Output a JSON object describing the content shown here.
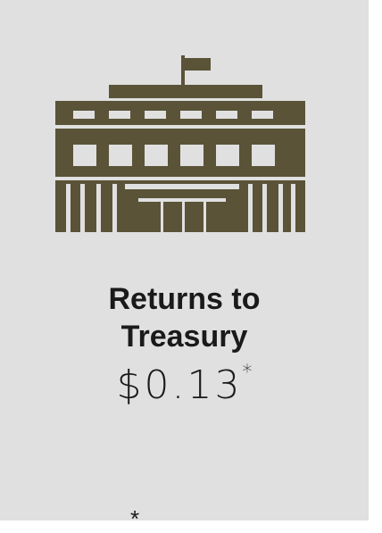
{
  "card": {
    "label_line1": "Returns to",
    "label_line2": "Treasury",
    "amount": "$0.13",
    "amount_mark": "*"
  },
  "footnote": {
    "mark": "*"
  }
}
